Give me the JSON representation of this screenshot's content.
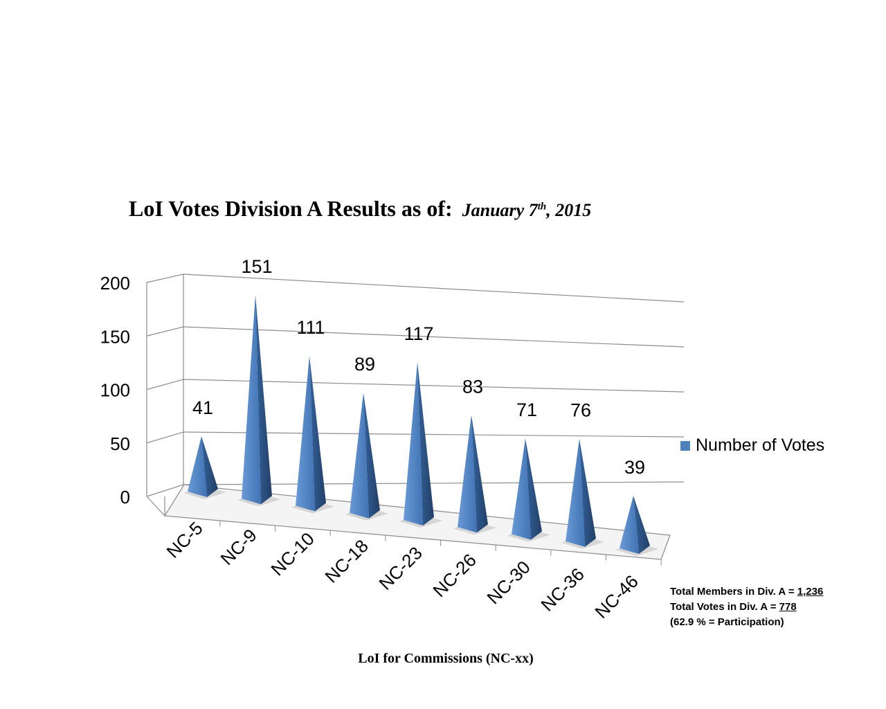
{
  "title": {
    "main": "LoI Votes Division A Results as of:",
    "date_prefix": "January 7",
    "date_sup": "th",
    "date_suffix": ", 2015"
  },
  "notes": {
    "line1_label": "Total Members in Div. A = ",
    "line1_value": "1,236",
    "line2_label": "Total Votes in Div. A = ",
    "line2_value": "778",
    "line3": "(62.9 % = Participation)"
  },
  "chart_data": {
    "type": "bar",
    "title": "LoI Votes Division A Results as of: January 7th, 2015",
    "xlabel": "LoI for Commissions (NC-xx)",
    "ylabel": "",
    "categories": [
      "NC-5",
      "NC-9",
      "NC-10",
      "NC-18",
      "NC-23",
      "NC-26",
      "NC-30",
      "NC-36",
      "NC-46"
    ],
    "series": [
      {
        "name": "Number of Votes",
        "values": [
          41,
          151,
          111,
          89,
          117,
          83,
          71,
          76,
          39
        ]
      }
    ],
    "ylim": [
      0,
      200
    ],
    "yticks": [
      0,
      50,
      100,
      150,
      200
    ],
    "grid": true,
    "legend": "right",
    "bar_shape": "3d-pyramid",
    "colors": {
      "face": "#4f81bd",
      "side": "#2f5587",
      "grid": "#8c8c8c"
    }
  }
}
